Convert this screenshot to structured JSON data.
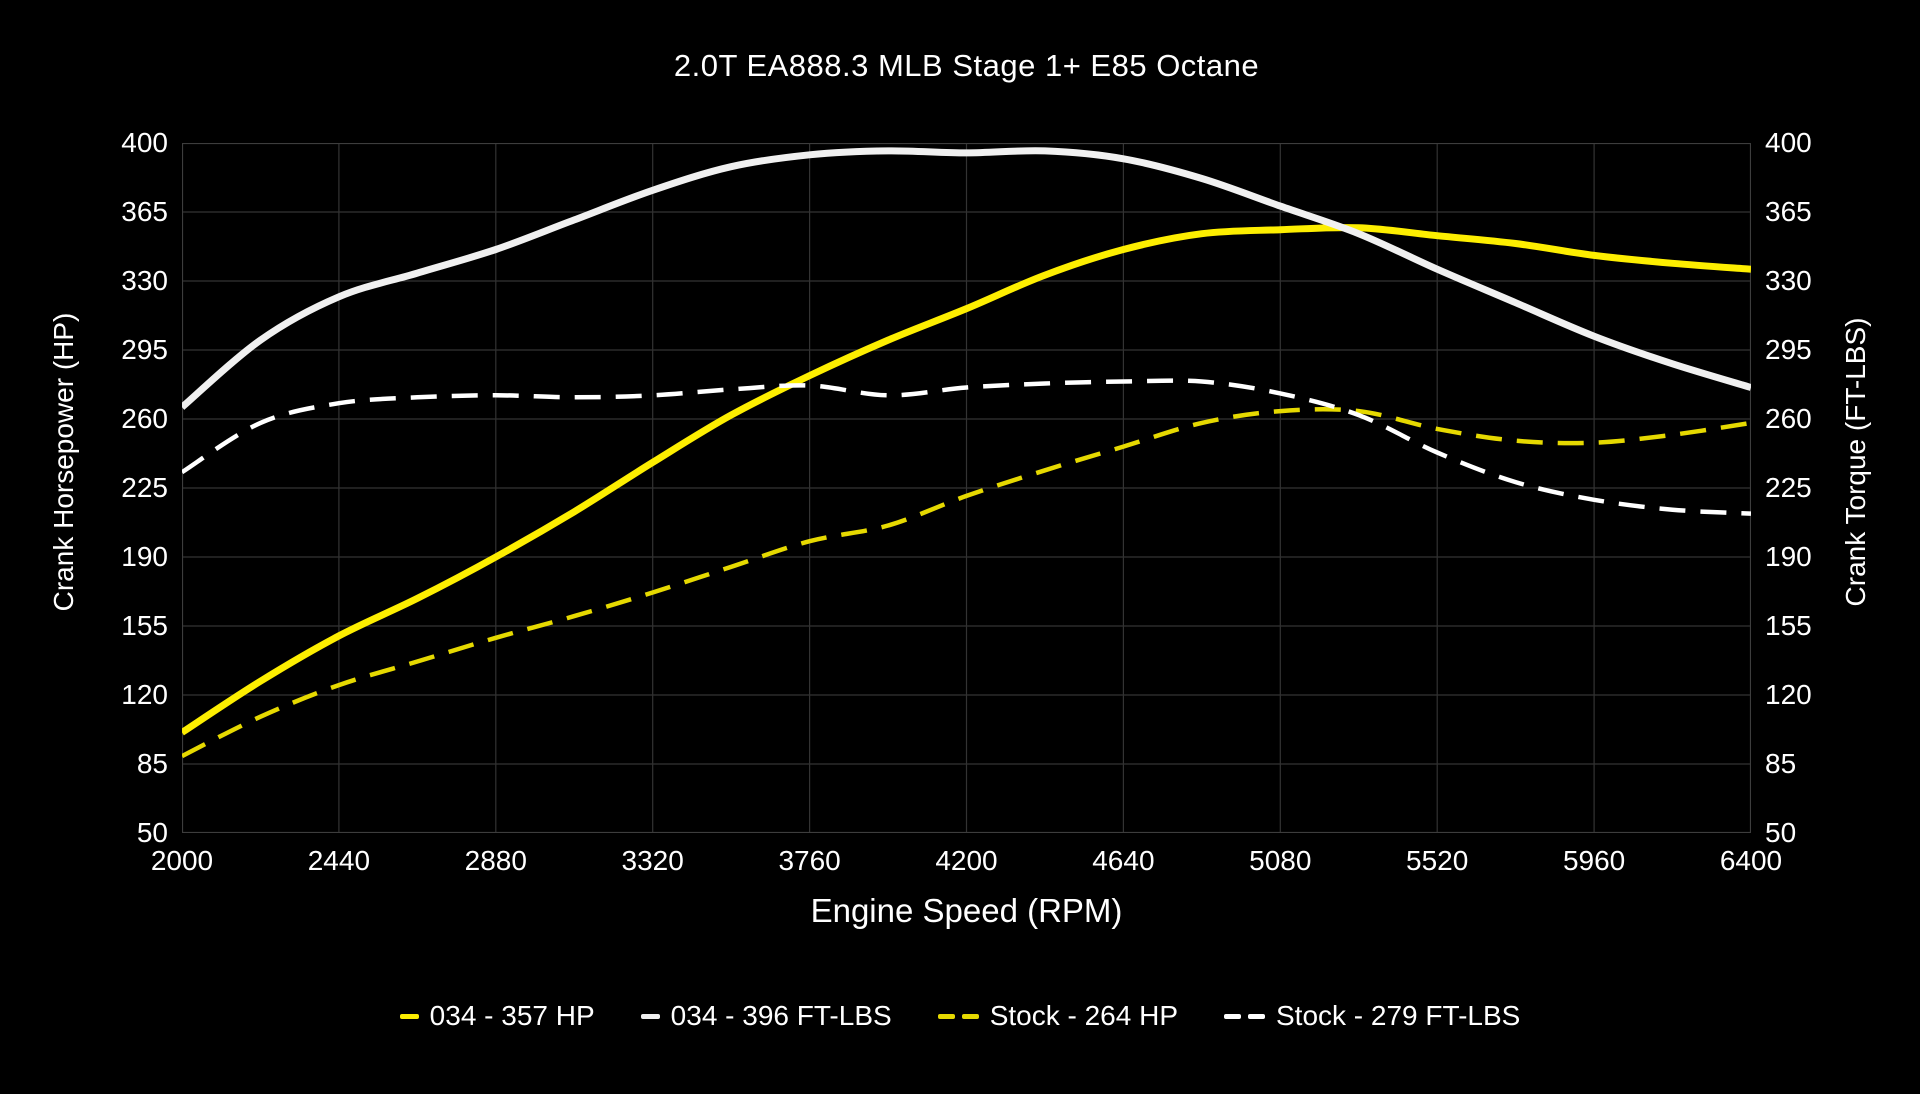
{
  "title": "2.0T EA888.3 MLB Stage 1+ E85 Octane",
  "colors": {
    "background": "#000000",
    "text": "#ffffff",
    "grid": "#333333",
    "plot_border": "#3d3d3d",
    "yellow_solid": "#fdee00",
    "yellow_dashed": "#e6d900",
    "white_solid": "#f0f0f0",
    "white_dashed": "#ffffff"
  },
  "chart_data": {
    "type": "line",
    "title": "2.0T EA888.3 MLB Stage 1+ E85 Octane",
    "xlabel": "Engine Speed (RPM)",
    "ylabel_left": "Crank Horsepower (HP)",
    "ylabel_right": "Crank Torque (FT-LBS)",
    "xlim": [
      2000,
      6400
    ],
    "ylim": [
      50,
      400
    ],
    "x_ticks": [
      2000,
      2440,
      2880,
      3320,
      3760,
      4200,
      4640,
      5080,
      5520,
      5960,
      6400
    ],
    "y_ticks": [
      400,
      365,
      330,
      295,
      260,
      225,
      190,
      155,
      120,
      85,
      50
    ],
    "grid": true,
    "legend_position": "bottom",
    "x": [
      2000,
      2220,
      2440,
      2660,
      2880,
      3100,
      3320,
      3540,
      3760,
      3980,
      4200,
      4420,
      4640,
      4860,
      5080,
      5300,
      5520,
      5740,
      5960,
      6180,
      6400
    ],
    "series": [
      {
        "name": "034 - 357 HP",
        "peak": 357,
        "axis": "left",
        "line_style": "solid",
        "color_key": "yellow_solid",
        "values": [
          101,
          127,
          150,
          169,
          190,
          213,
          238,
          262,
          282,
          300,
          316,
          333,
          346,
          354,
          356,
          357,
          353,
          349,
          343,
          339,
          336
        ]
      },
      {
        "name": "034 - 396 FT-LBS",
        "peak": 396,
        "axis": "right",
        "line_style": "solid",
        "color_key": "white_solid",
        "values": [
          266,
          300,
          322,
          334,
          346,
          361,
          376,
          388,
          394,
          396,
          395,
          396,
          392,
          382,
          368,
          354,
          336,
          319,
          302,
          288,
          276
        ]
      },
      {
        "name": "Stock - 264 HP",
        "peak": 264,
        "axis": "left",
        "line_style": "dashed",
        "color_key": "yellow_dashed",
        "values": [
          89,
          109,
          125,
          137,
          149,
          160,
          172,
          185,
          198,
          206,
          221,
          234,
          246,
          258,
          264,
          264,
          255,
          249,
          248,
          252,
          258
        ]
      },
      {
        "name": "Stock - 279 FT-LBS",
        "peak": 279,
        "axis": "right",
        "line_style": "dashed",
        "color_key": "white_dashed",
        "values": [
          233,
          258,
          268,
          271,
          272,
          271,
          272,
          275,
          277,
          272,
          276,
          278,
          279,
          279,
          273,
          262,
          243,
          228,
          219,
          214,
          212
        ]
      }
    ]
  }
}
